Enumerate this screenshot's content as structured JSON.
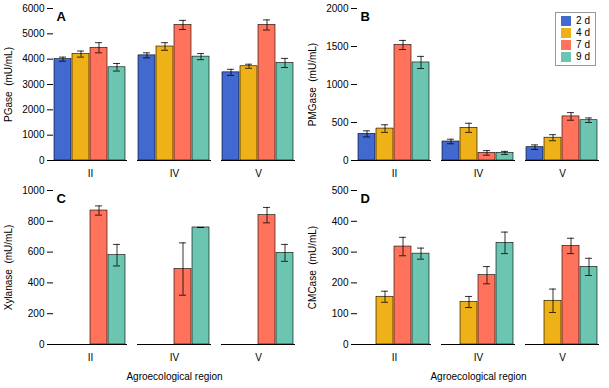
{
  "chart_data": [
    {
      "type": "bar",
      "title": "A",
      "ylabel": "PGase  (mU/mL)",
      "categories": [
        "II",
        "IV",
        "V"
      ],
      "series": [
        {
          "name": "2 d",
          "values": [
            4000,
            4150,
            3480
          ],
          "errors": [
            80,
            100,
            120
          ]
        },
        {
          "name": "4 d",
          "values": [
            4200,
            4500,
            3720
          ],
          "errors": [
            120,
            150,
            80
          ]
        },
        {
          "name": "7 d",
          "values": [
            4450,
            5350,
            5350
          ],
          "errors": [
            200,
            180,
            200
          ]
        },
        {
          "name": "9 d",
          "values": [
            3680,
            4100,
            3850
          ],
          "errors": [
            150,
            120,
            180
          ]
        }
      ],
      "ylim": [
        0,
        6000
      ],
      "yticks": [
        0,
        1000,
        2000,
        3000,
        4000,
        5000,
        6000
      ]
    },
    {
      "type": "bar",
      "title": "B",
      "ylabel": "PMGase  (mU/mL)",
      "categories": [
        "II",
        "IV",
        "V"
      ],
      "series": [
        {
          "name": "2 d",
          "values": [
            350,
            250,
            175
          ],
          "errors": [
            40,
            30,
            30
          ]
        },
        {
          "name": "4 d",
          "values": [
            420,
            430,
            300
          ],
          "errors": [
            50,
            60,
            40
          ]
        },
        {
          "name": "7 d",
          "values": [
            1520,
            100,
            580
          ],
          "errors": [
            60,
            30,
            50
          ]
        },
        {
          "name": "9 d",
          "values": [
            1290,
            100,
            530
          ],
          "errors": [
            80,
            20,
            30
          ]
        }
      ],
      "ylim": [
        0,
        2000
      ],
      "yticks": [
        0,
        500,
        1000,
        1500,
        2000
      ],
      "legend": "upper right"
    },
    {
      "type": "bar",
      "title": "C",
      "ylabel": "Xylanase  (mU/mL)",
      "xlabel": "Agroecological region",
      "categories": [
        "II",
        "IV",
        "V"
      ],
      "series": [
        {
          "name": "2 d",
          "values": [
            0,
            0,
            0
          ],
          "errors": [
            0,
            0,
            0
          ]
        },
        {
          "name": "4 d",
          "values": [
            0,
            0,
            0
          ],
          "errors": [
            0,
            0,
            0
          ]
        },
        {
          "name": "7 d",
          "values": [
            870,
            490,
            840
          ],
          "errors": [
            30,
            170,
            50
          ]
        },
        {
          "name": "9 d",
          "values": [
            580,
            760,
            595
          ],
          "errors": [
            70,
            0,
            55
          ]
        }
      ],
      "ylim": [
        0,
        1000
      ],
      "yticks": [
        0,
        200,
        400,
        600,
        800,
        1000
      ]
    },
    {
      "type": "bar",
      "title": "D",
      "ylabel": "CMCase  (mU/mL)",
      "xlabel": "Agroecological region",
      "categories": [
        "II",
        "IV",
        "V"
      ],
      "series": [
        {
          "name": "2 d",
          "values": [
            0,
            0,
            0
          ],
          "errors": [
            0,
            0,
            0
          ]
        },
        {
          "name": "4 d",
          "values": [
            155,
            138,
            142
          ],
          "errors": [
            18,
            18,
            38
          ]
        },
        {
          "name": "7 d",
          "values": [
            318,
            225,
            320
          ],
          "errors": [
            30,
            28,
            25
          ]
        },
        {
          "name": "9 d",
          "values": [
            295,
            330,
            252
          ],
          "errors": [
            18,
            35,
            28
          ]
        }
      ],
      "ylim": [
        0,
        500
      ],
      "yticks": [
        0,
        100,
        200,
        300,
        400,
        500
      ]
    }
  ]
}
